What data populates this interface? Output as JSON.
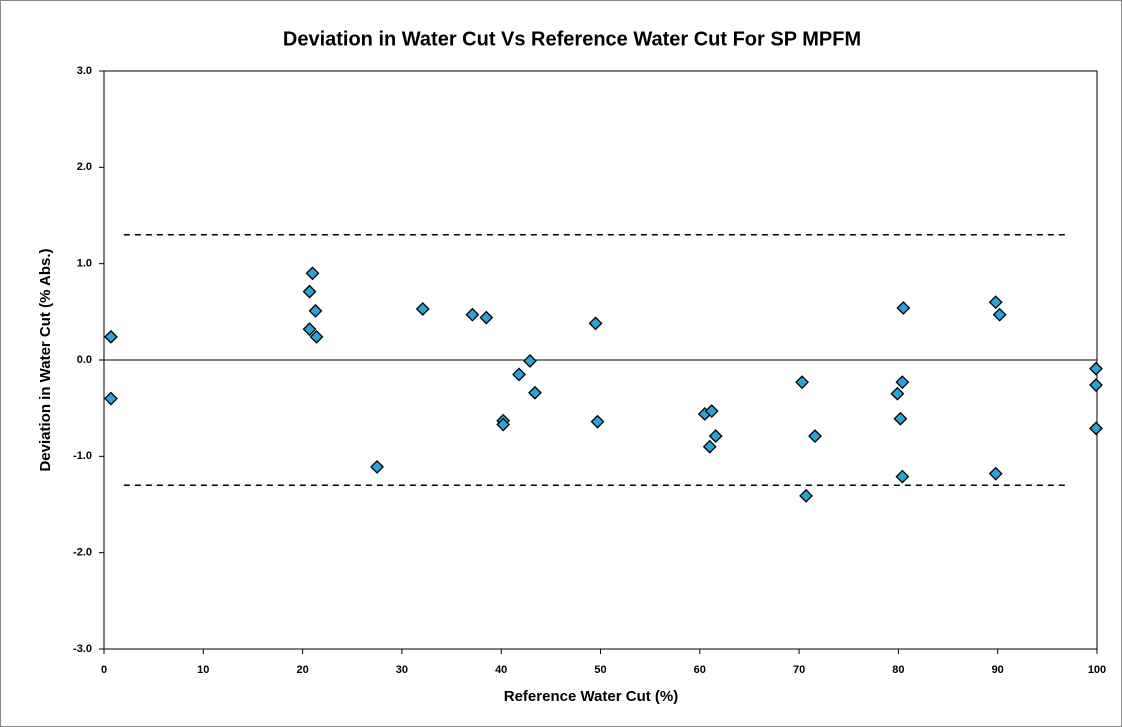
{
  "chart_data": {
    "type": "scatter",
    "title": "Deviation in Water Cut Vs Reference Water Cut For SP MPFM",
    "x_label": "Reference Water Cut (%)",
    "y_label": "Deviation in Water Cut (% Abs.)",
    "color": "#29a3d9",
    "x": [
      0.7,
      0.7,
      20.7,
      21.0,
      21.3,
      20.7,
      21.4,
      27.5,
      32.1,
      37.1,
      38.5,
      40.2,
      40.2,
      41.8,
      42.9,
      43.4,
      49.5,
      49.7,
      60.5,
      61.2,
      61.0,
      61.6,
      70.3,
      70.7,
      71.6,
      79.9,
      80.4,
      80.5,
      80.2,
      80.4,
      89.8,
      90.2,
      89.8,
      99.9,
      99.9,
      99.9
    ],
    "values": [
      0.24,
      -0.4,
      0.71,
      0.9,
      0.51,
      0.32,
      0.24,
      -1.11,
      0.53,
      0.47,
      0.44,
      -0.63,
      -0.67,
      -0.15,
      -0.01,
      -0.34,
      0.38,
      -0.64,
      -0.56,
      -0.53,
      -0.9,
      -0.79,
      -0.23,
      -1.41,
      -0.79,
      -0.35,
      -0.23,
      0.54,
      -0.61,
      -1.21,
      0.6,
      0.47,
      -1.18,
      -0.09,
      -0.26,
      -0.71
    ],
    "limit_lines": [
      {
        "y": 1.3,
        "x": [
          2,
          97
        ]
      },
      {
        "y": -1.3,
        "x": [
          2,
          97
        ]
      }
    ],
    "xlim": [
      0,
      100
    ],
    "xticks": [
      0,
      10,
      20,
      30,
      40,
      50,
      60,
      70,
      80,
      90,
      100
    ],
    "ylim": [
      -3,
      3
    ],
    "yticks": [
      {
        "value": -3,
        "label": "-3.0"
      },
      {
        "value": -2,
        "label": "-2.0"
      },
      {
        "value": -1,
        "label": "-1.0"
      },
      {
        "value": 0,
        "label": "0.0"
      },
      {
        "value": 1,
        "label": "1.0"
      },
      {
        "value": 2,
        "label": "2.0"
      },
      {
        "value": 3,
        "label": "3.0"
      }
    ],
    "grid": false
  }
}
